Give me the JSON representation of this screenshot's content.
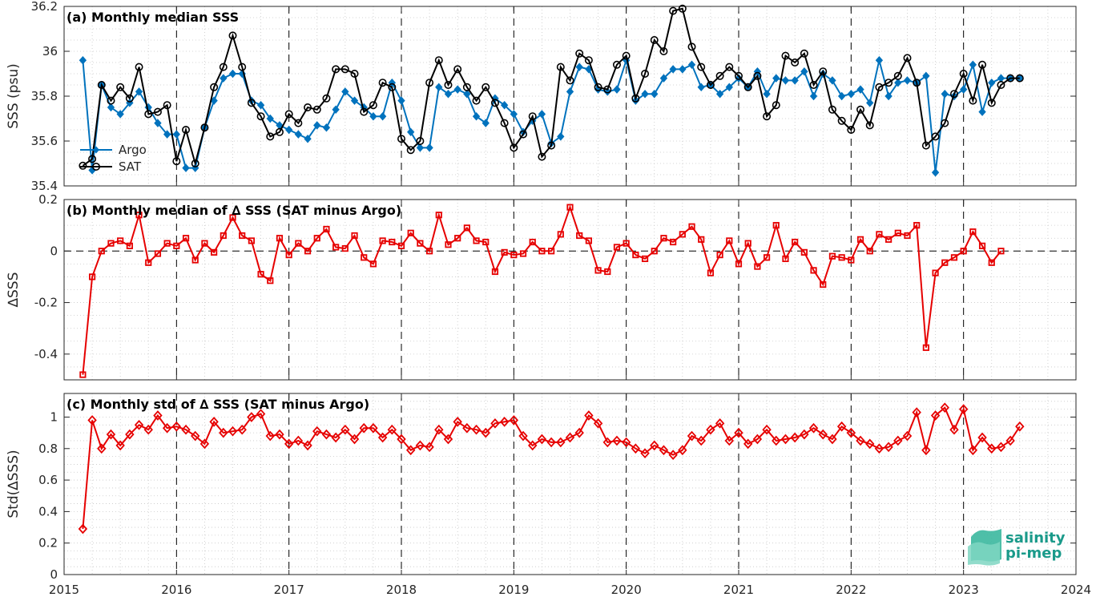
{
  "x_ticks": [
    2015,
    2016,
    2017,
    2018,
    2019,
    2020,
    2021,
    2022,
    2023,
    2024
  ],
  "logo": {
    "line1": "salinity",
    "line2": "pi-mep"
  },
  "colors": {
    "argo": "#0072bd",
    "sat": "#000000",
    "delta": "#e60000"
  },
  "chart_data": [
    {
      "type": "line",
      "title": "(a) Monthly median SSS",
      "ylabel": "SSS (psu)",
      "xlim": [
        2015,
        2024
      ],
      "ylim": [
        35.4,
        36.2
      ],
      "yticks": [
        35.4,
        35.6,
        35.8,
        36,
        36.2
      ],
      "grid": true,
      "legend": "lower-left",
      "series": [
        {
          "name": "Argo",
          "x_start": "2015-03",
          "values": [
            35.96,
            35.47,
            35.85,
            35.75,
            35.72,
            35.77,
            35.82,
            35.75,
            35.68,
            35.63,
            35.63,
            35.48,
            35.48,
            35.66,
            35.78,
            35.88,
            35.9,
            35.9,
            35.78,
            35.76,
            35.7,
            35.67,
            35.65,
            35.63,
            35.61,
            35.67,
            35.66,
            35.74,
            35.82,
            35.78,
            35.75,
            35.71,
            35.71,
            35.86,
            35.78,
            35.64,
            35.57,
            35.57,
            35.84,
            35.81,
            35.83,
            35.81,
            35.71,
            35.68,
            35.79,
            35.76,
            35.72,
            35.64,
            35.69,
            35.72,
            35.59,
            35.62,
            35.82,
            35.93,
            35.92,
            35.83,
            35.82,
            35.83,
            35.96,
            35.78,
            35.81,
            35.81,
            35.88,
            35.92,
            35.92,
            35.94,
            35.84,
            35.85,
            35.81,
            35.84,
            35.88,
            35.84,
            35.91,
            35.81,
            35.88,
            35.87,
            35.87,
            35.91,
            35.8,
            35.9,
            35.87,
            35.8,
            35.81,
            35.83,
            35.77,
            35.96,
            35.8,
            35.86,
            35.87,
            35.86,
            35.89,
            35.46,
            35.81,
            35.8,
            35.83,
            35.94,
            35.73,
            35.86,
            35.88,
            35.88,
            35.88
          ]
        },
        {
          "name": "SAT",
          "x_start": "2015-03",
          "values": [
            35.49,
            35.52,
            35.85,
            35.78,
            35.84,
            35.79,
            35.93,
            35.72,
            35.73,
            35.76,
            35.51,
            35.65,
            35.5,
            35.66,
            35.84,
            35.93,
            36.07,
            35.93,
            35.77,
            35.71,
            35.62,
            35.64,
            35.72,
            35.68,
            35.75,
            35.74,
            35.79,
            35.92,
            35.92,
            35.9,
            35.73,
            35.76,
            35.86,
            35.84,
            35.61,
            35.56,
            35.6,
            35.86,
            35.96,
            35.85,
            35.92,
            35.84,
            35.78,
            35.84,
            35.77,
            35.68,
            35.57,
            35.63,
            35.71,
            35.53,
            35.58,
            35.93,
            35.87,
            35.99,
            35.96,
            35.84,
            35.83,
            35.94,
            35.98,
            35.79,
            35.9,
            36.05,
            36.0,
            36.18,
            36.19,
            36.02,
            35.93,
            35.85,
            35.89,
            35.93,
            35.89,
            35.84,
            35.89,
            35.71,
            35.76,
            35.98,
            35.95,
            35.99,
            35.85,
            35.91,
            35.74,
            35.69,
            35.65,
            35.74,
            35.67,
            35.84,
            35.86,
            35.89,
            35.97,
            35.86,
            35.58,
            35.62,
            35.68,
            35.81,
            35.9,
            35.78,
            35.94,
            35.77,
            35.85,
            35.88,
            35.88
          ]
        }
      ]
    },
    {
      "type": "line",
      "title": "(b) Monthly median of ∆ SSS (SAT minus Argo)",
      "ylabel": "∆SSS",
      "xlim": [
        2015,
        2024
      ],
      "ylim": [
        -0.5,
        0.2
      ],
      "yticks": [
        -0.4,
        -0.2,
        0,
        0.2
      ],
      "ytick_labels": [
        "-0.4",
        "-0.2",
        "0",
        "0.2"
      ],
      "zero_line": true,
      "grid": true,
      "series": [
        {
          "name": "",
          "x_start": "2015-03",
          "values": [
            -0.48,
            -0.1,
            0.0,
            0.03,
            0.04,
            0.02,
            0.14,
            -0.045,
            -0.01,
            0.03,
            0.02,
            0.05,
            -0.035,
            0.03,
            -0.005,
            0.06,
            0.13,
            0.06,
            0.04,
            -0.09,
            -0.115,
            0.05,
            -0.015,
            0.03,
            0.0,
            0.05,
            0.085,
            0.015,
            0.01,
            0.06,
            -0.025,
            -0.05,
            0.04,
            0.035,
            0.02,
            0.07,
            0.03,
            0.0,
            0.14,
            0.025,
            0.05,
            0.09,
            0.04,
            0.035,
            -0.08,
            -0.005,
            -0.015,
            -0.01,
            0.035,
            0.0,
            0.0,
            0.065,
            0.17,
            0.06,
            0.04,
            -0.075,
            -0.08,
            0.015,
            0.03,
            -0.015,
            -0.03,
            0.0,
            0.05,
            0.035,
            0.065,
            0.095,
            0.045,
            -0.085,
            -0.015,
            0.04,
            -0.05,
            0.03,
            -0.06,
            -0.025,
            0.1,
            -0.03,
            0.035,
            -0.005,
            -0.075,
            -0.13,
            -0.02,
            -0.025,
            -0.035,
            0.045,
            0.0,
            0.065,
            0.045,
            0.07,
            0.06,
            0.1,
            -0.375,
            -0.085,
            -0.045,
            -0.025,
            0.0,
            0.075,
            0.02,
            -0.045,
            0.0
          ]
        }
      ]
    },
    {
      "type": "line",
      "title": "(c) Monthly std of ∆ SSS (SAT minus Argo)",
      "ylabel": "Std(∆SSS)",
      "xlim": [
        2015,
        2024
      ],
      "ylim": [
        0,
        1.15
      ],
      "yticks": [
        0,
        0.2,
        0.4,
        0.6,
        0.8,
        1
      ],
      "grid": true,
      "series": [
        {
          "name": "",
          "x_start": "2015-03",
          "values": [
            0.29,
            0.98,
            0.8,
            0.89,
            0.82,
            0.89,
            0.95,
            0.92,
            1.01,
            0.93,
            0.94,
            0.92,
            0.88,
            0.83,
            0.97,
            0.9,
            0.91,
            0.92,
            1.0,
            1.02,
            0.88,
            0.89,
            0.83,
            0.85,
            0.82,
            0.91,
            0.89,
            0.87,
            0.92,
            0.86,
            0.93,
            0.93,
            0.87,
            0.92,
            0.86,
            0.79,
            0.82,
            0.81,
            0.92,
            0.86,
            0.97,
            0.93,
            0.92,
            0.9,
            0.96,
            0.97,
            0.98,
            0.88,
            0.82,
            0.86,
            0.84,
            0.84,
            0.87,
            0.9,
            1.01,
            0.96,
            0.84,
            0.85,
            0.84,
            0.8,
            0.77,
            0.82,
            0.79,
            0.76,
            0.79,
            0.88,
            0.85,
            0.92,
            0.96,
            0.85,
            0.9,
            0.83,
            0.86,
            0.92,
            0.85,
            0.86,
            0.87,
            0.89,
            0.93,
            0.89,
            0.86,
            0.94,
            0.9,
            0.85,
            0.83,
            0.8,
            0.81,
            0.85,
            0.88,
            1.03,
            0.79,
            1.01,
            1.06,
            0.92,
            1.05,
            0.79,
            0.87,
            0.8,
            0.81,
            0.85,
            0.94
          ]
        }
      ]
    }
  ]
}
